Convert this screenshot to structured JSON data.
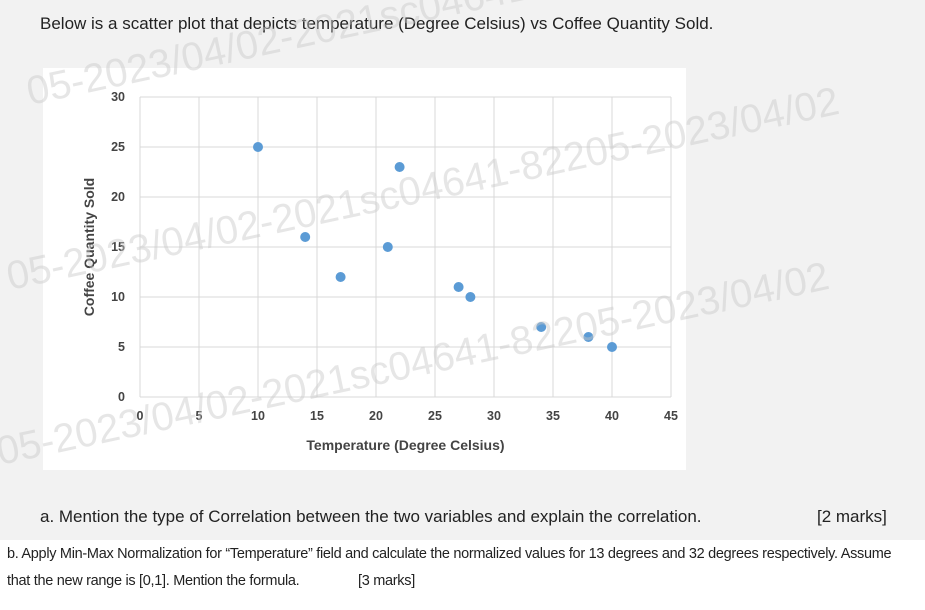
{
  "intro": "Below is a scatter plot that depicts temperature (Degree Celsius) vs Coffee Quantity Sold.",
  "chart_data": {
    "type": "scatter",
    "title": "",
    "xlabel": "Temperature (Degree Celsius)",
    "ylabel": "Coffee Quantity Sold",
    "xlim": [
      0,
      45
    ],
    "ylim": [
      0,
      30
    ],
    "xticks": [
      "0",
      "5",
      "10",
      "15",
      "20",
      "25",
      "30",
      "35",
      "40",
      "45"
    ],
    "yticks": [
      "0",
      "5",
      "10",
      "15",
      "20",
      "25",
      "30"
    ],
    "grid": true,
    "points": [
      {
        "x": 10,
        "y": 25
      },
      {
        "x": 14,
        "y": 16
      },
      {
        "x": 17,
        "y": 12
      },
      {
        "x": 21,
        "y": 15
      },
      {
        "x": 22,
        "y": 23
      },
      {
        "x": 27,
        "y": 11
      },
      {
        "x": 28,
        "y": 10
      },
      {
        "x": 34,
        "y": 7
      },
      {
        "x": 38,
        "y": 6
      },
      {
        "x": 40,
        "y": 5
      }
    ],
    "marker_color": "#5b9bd5",
    "grid_color": "#d9d9d9"
  },
  "question_a": {
    "text": "a. Mention the type of Correlation between the two variables and explain the correlation.",
    "marks": "[2 marks]"
  },
  "question_b": {
    "line1": "b. Apply Min-Max Normalization for “Temperature” field and calculate the normalized values for 13 degrees and 32 degrees respectively. Assume",
    "line2": "that the new range is [0,1]. Mention the formula.",
    "marks": "[3 marks]"
  },
  "watermark": "05-2023/04/02-2021sc04641-82205-2023/04/02"
}
